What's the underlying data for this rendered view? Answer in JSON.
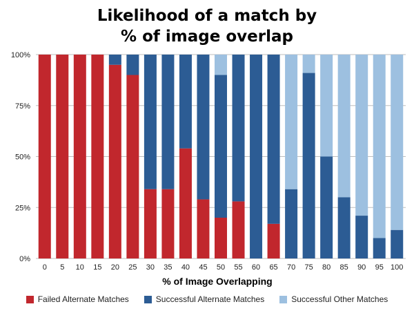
{
  "chart_data": {
    "type": "bar",
    "stacked": true,
    "title": "Likelihood of a match by % of image overlap",
    "title_lines": [
      "Likelihood of a match by",
      "% of image overlap"
    ],
    "xlabel": "% of Image Overlapping",
    "ylabel": "",
    "ylim": [
      0,
      100
    ],
    "yticks": [
      "0%",
      "25%",
      "50%",
      "75%",
      "100%"
    ],
    "grid": true,
    "legend_position": "bottom",
    "categories": [
      "0",
      "5",
      "10",
      "15",
      "20",
      "25",
      "30",
      "35",
      "40",
      "45",
      "50",
      "55",
      "60",
      "65",
      "70",
      "75",
      "80",
      "85",
      "90",
      "95",
      "100"
    ],
    "series": [
      {
        "name": "Failed Alternate Matches",
        "color": "#c1272d",
        "values": [
          100,
          100,
          100,
          100,
          95,
          90,
          34,
          34,
          54,
          29,
          20,
          28,
          0,
          17,
          0,
          0,
          0,
          0,
          0,
          0,
          0
        ]
      },
      {
        "name": "Successful Alternate Matches",
        "color": "#2c5c94",
        "values": [
          0,
          0,
          0,
          0,
          5,
          10,
          66,
          66,
          46,
          71,
          70,
          72,
          100,
          83,
          34,
          91,
          50,
          30,
          21,
          10,
          14
        ]
      },
      {
        "name": "Successful Other Matches",
        "color": "#9dc0e0",
        "values": [
          0,
          0,
          0,
          0,
          0,
          0,
          0,
          0,
          0,
          0,
          10,
          0,
          0,
          0,
          66,
          9,
          50,
          70,
          79,
          90,
          86
        ]
      }
    ]
  }
}
